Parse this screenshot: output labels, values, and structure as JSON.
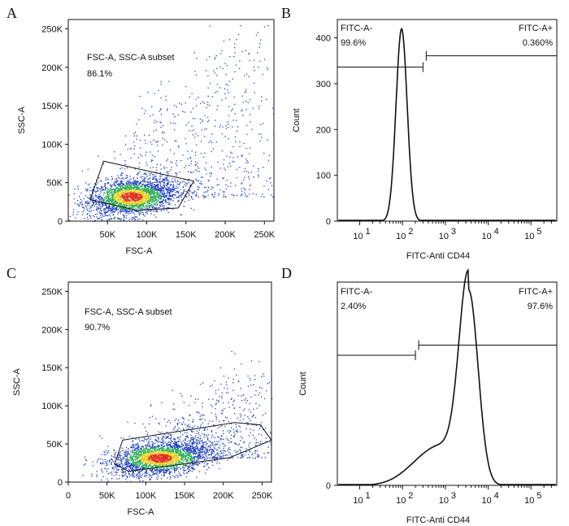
{
  "chart_data": [
    {
      "panel": "A",
      "type": "scatter",
      "xlabel": "FSC-A",
      "ylabel": "SSC-A",
      "xlim": [
        0,
        262144
      ],
      "ylim": [
        0,
        262144
      ],
      "x_ticks": [
        "50K",
        "100K",
        "150K",
        "200K",
        "250K"
      ],
      "x_tick_values": [
        50000,
        100000,
        150000,
        200000,
        250000
      ],
      "y_ticks": [
        "0",
        "50K",
        "100K",
        "150K",
        "200K",
        "250K"
      ],
      "y_tick_values": [
        0,
        50000,
        100000,
        150000,
        200000,
        250000
      ],
      "gate": {
        "label": "FSC-A, SSC-A subset",
        "value": "86.1%",
        "polygon": [
          [
            28000,
            28000
          ],
          [
            45000,
            78000
          ],
          [
            160000,
            52000
          ],
          [
            140000,
            17000
          ],
          [
            88000,
            14000
          ]
        ]
      },
      "population": {
        "center": [
          80000,
          32000
        ],
        "spread": [
          28000,
          12000
        ],
        "tail_to": [
          260000,
          230000
        ]
      }
    },
    {
      "panel": "B",
      "type": "histogram",
      "xlabel": "FITC-Anti CD44",
      "ylabel": "Count",
      "x_scale": "log",
      "xlim": [
        3,
        400000
      ],
      "ylim": [
        0,
        440
      ],
      "x_ticks": [
        "10",
        "10",
        "10",
        "10",
        "10"
      ],
      "x_tick_exponents": [
        "1",
        "2",
        "3",
        "4",
        "5"
      ],
      "x_tick_values": [
        10,
        100,
        1000,
        10000,
        100000
      ],
      "y_ticks": [
        "0",
        "100",
        "200",
        "300",
        "400"
      ],
      "y_tick_values": [
        0,
        100,
        200,
        300,
        400
      ],
      "gate_split": 300,
      "gate_neg": {
        "label": "FITC-A-",
        "value": "99.6%"
      },
      "gate_pos": {
        "label": "FITC-A+",
        "value": "0.360%"
      },
      "peak": {
        "x": 95,
        "count": 420
      }
    },
    {
      "panel": "C",
      "type": "scatter",
      "xlabel": "FSC-A",
      "ylabel": "SSC-A",
      "xlim": [
        0,
        262144
      ],
      "ylim": [
        0,
        262144
      ],
      "x_ticks": [
        "0",
        "50K",
        "100K",
        "150K",
        "200K",
        "250K"
      ],
      "x_tick_values": [
        0,
        50000,
        100000,
        150000,
        200000,
        250000
      ],
      "y_ticks": [
        "0",
        "50K",
        "100K",
        "150K",
        "200K",
        "250K"
      ],
      "y_tick_values": [
        0,
        50000,
        100000,
        150000,
        200000,
        250000
      ],
      "gate": {
        "label": "FSC-A, SSC-A subset",
        "value": "90.7%",
        "polygon": [
          [
            60000,
            24000
          ],
          [
            70000,
            55000
          ],
          [
            215000,
            78000
          ],
          [
            248000,
            75000
          ],
          [
            262000,
            55000
          ],
          [
            208000,
            32000
          ],
          [
            78000,
            14000
          ]
        ]
      },
      "population": {
        "center": [
          118000,
          32000
        ],
        "spread": [
          32000,
          11000
        ],
        "tail_to": [
          260000,
          140000
        ]
      }
    },
    {
      "panel": "D",
      "type": "histogram",
      "xlabel": "FITC-Anti CD44",
      "ylabel": "Count",
      "x_scale": "log",
      "xlim": [
        3,
        400000
      ],
      "ylim": [
        0,
        100
      ],
      "x_ticks": [
        "10",
        "10",
        "10",
        "10",
        "10"
      ],
      "x_tick_exponents": [
        "1",
        "2",
        "3",
        "4",
        "5"
      ],
      "x_tick_values": [
        10,
        100,
        1000,
        10000,
        100000
      ],
      "y_ticks": [
        "0"
      ],
      "y_tick_values": [
        0
      ],
      "gate_split": 200,
      "gate_neg": {
        "label": "FITC-A-",
        "value": "2.40%"
      },
      "gate_pos": {
        "label": "FITC-A+",
        "value": "97.6%"
      },
      "peak": {
        "x": 3500,
        "count": 96
      }
    }
  ],
  "colors": {
    "low_density": "#1f3fbf",
    "mid_density": "#2fae5a",
    "high_density": "#e8d020",
    "peak_density": "#e03020",
    "line": "#111111"
  }
}
